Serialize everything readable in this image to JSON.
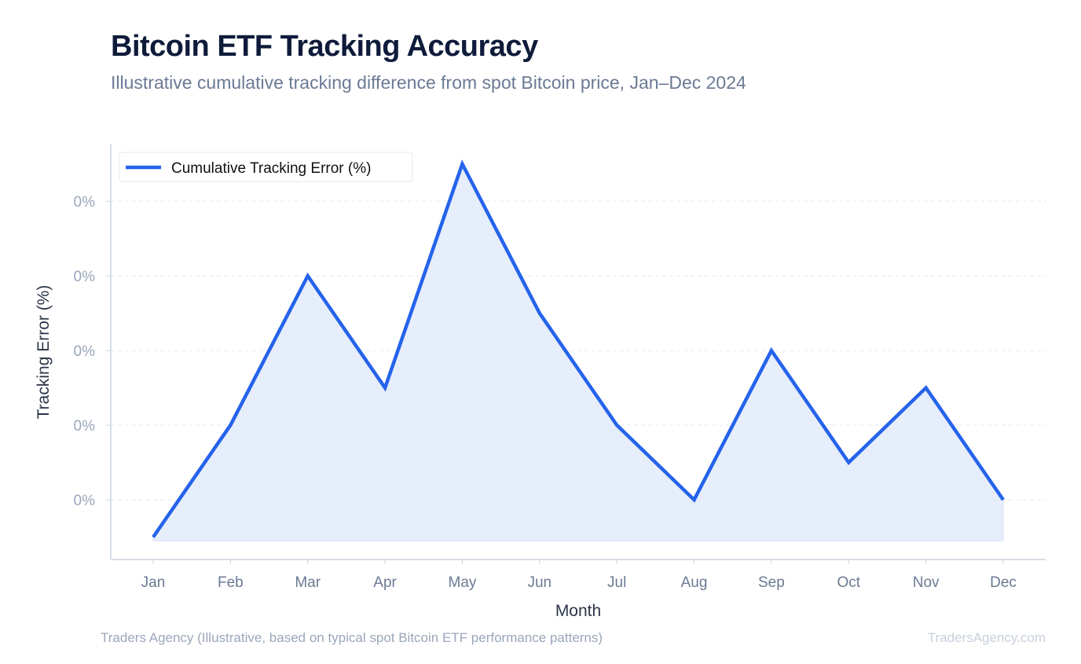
{
  "title": "Bitcoin ETF Tracking Accuracy",
  "subtitle": "Illustrative cumulative tracking difference from spot Bitcoin price, Jan–Dec 2024",
  "source": "Traders Agency (Illustrative, based on typical spot Bitcoin ETF performance patterns)",
  "brand": "TradersAgency.com",
  "chart_data": {
    "type": "area",
    "xlabel": "Month",
    "ylabel": "Tracking Error (%)",
    "categories": [
      "Jan",
      "Feb",
      "Mar",
      "Apr",
      "May",
      "Jun",
      "Jul",
      "Aug",
      "Sep",
      "Oct",
      "Nov",
      "Dec"
    ],
    "series": [
      {
        "name": "Cumulative Tracking Error (%)",
        "values": [
          0.05,
          0.2,
          0.4,
          0.25,
          0.55,
          0.35,
          0.2,
          0.1,
          0.3,
          0.15,
          0.25,
          0.1
        ],
        "color": "#2563eb",
        "fill": "#e6eefb"
      }
    ],
    "yticks": [
      0.1,
      0.2,
      0.3,
      0.4,
      0.5
    ],
    "ytick_labels": [
      "0%",
      "0%",
      "0%",
      "0%",
      "0%"
    ],
    "ylim": [
      0.02,
      0.577
    ],
    "grid": "horizontal dashed",
    "legend": "top-left"
  }
}
